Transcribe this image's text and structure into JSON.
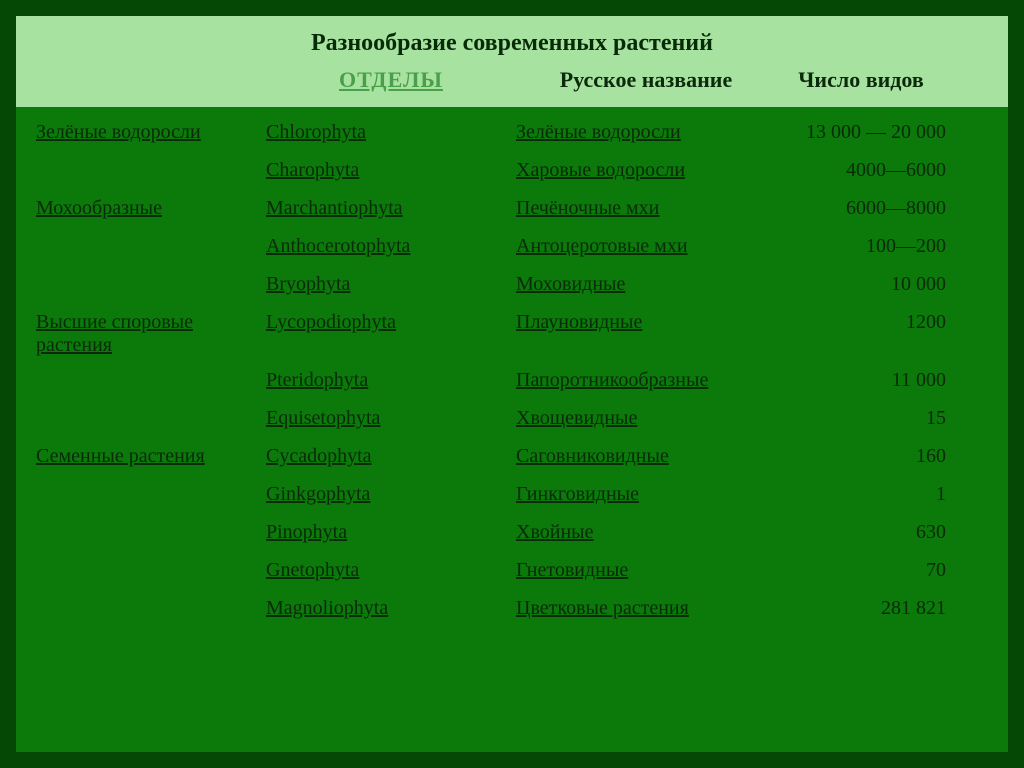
{
  "colors": {
    "frame": "#054705",
    "panel": "#0b7a0b",
    "header_band": "#a8e2a0",
    "text_dark": "#0b2a0b",
    "header_link": "#4aa04a"
  },
  "title": "Разнообразие современных растений",
  "columns": {
    "group_placeholder": "",
    "divisions": "ОТДЕЛЫ",
    "russian_name": "Русское название",
    "species_count": "Число видов"
  },
  "rows": [
    {
      "group": "Зелёные водоросли",
      "latin": "Chlorophyta",
      "russian": "Зелёные водоросли",
      "count": "13 000 — 20 000"
    },
    {
      "group": "",
      "latin": "Charophyta",
      "russian": "Харовые водоросли",
      "count": "4000—6000"
    },
    {
      "group": "Мохообразные",
      "latin": "Marchantiophyta",
      "russian": "Печёночные мхи",
      "count": "6000—8000"
    },
    {
      "group": "",
      "latin": "Anthocerotophyta",
      "russian": "Антоцеротовые мхи",
      "count": "100—200"
    },
    {
      "group": "",
      "latin": "Bryophyta",
      "russian": "Моховидные",
      "count": "10 000"
    },
    {
      "group": "Высшие споровые растения",
      "latin": "Lycopodiophyta",
      "russian": "Плауновидные",
      "count": "1200"
    },
    {
      "group": "",
      "latin": "Pteridophyta",
      "russian": "Папоротникообразные",
      "count": "11 000"
    },
    {
      "group": "",
      "latin": "Equisetophyta",
      "russian": "Хвощевидные",
      "count": "15"
    },
    {
      "group": "Семенные растения",
      "latin": "Cycadophyta",
      "russian": "Саговниковидные",
      "count": "160"
    },
    {
      "group": "",
      "latin": "Ginkgophyta",
      "russian": "Гинкговидные",
      "count": "1"
    },
    {
      "group": "",
      "latin": "Pinophyta",
      "russian": "Хвойные",
      "count": "630"
    },
    {
      "group": "",
      "latin": "Gnetophyta",
      "russian": "Гнетовидные",
      "count": "70"
    },
    {
      "group": "",
      "latin": "Magnoliophyta",
      "russian": "Цветковые растения",
      "count": "281 821"
    }
  ]
}
